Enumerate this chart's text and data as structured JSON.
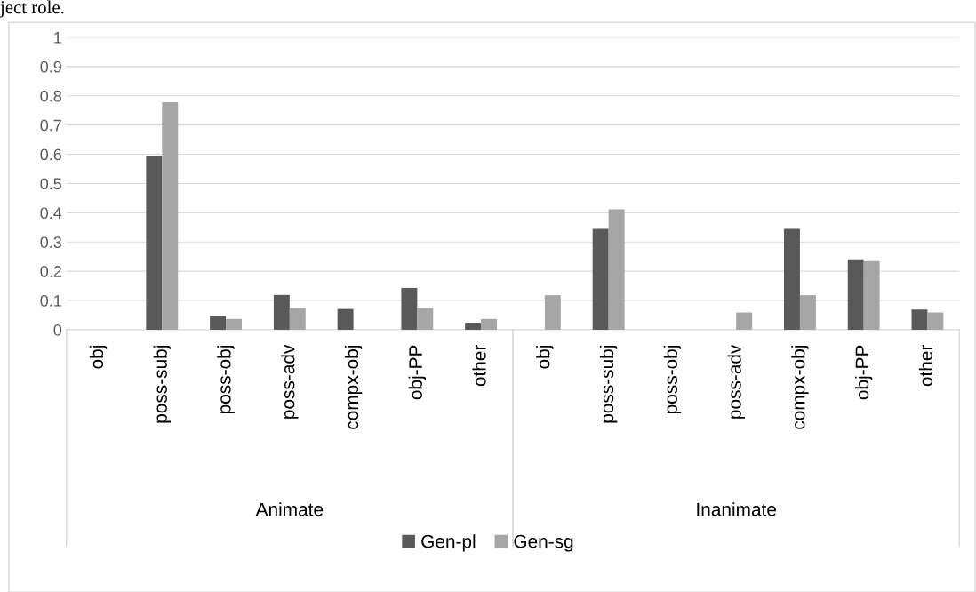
{
  "chart_data": {
    "type": "bar",
    "categories": [
      "obj",
      "poss-subj",
      "poss-obj",
      "poss-adv",
      "compx-obj",
      "obj-PP",
      "other",
      "obj",
      "poss-subj",
      "poss-obj",
      "poss-adv",
      "compx-obj",
      "obj-PP",
      "other"
    ],
    "series": [
      {
        "name": "Gen-pl",
        "color": "#595959",
        "values": [
          0,
          0.595,
          0.048,
          0.119,
          0.071,
          0.143,
          0.024,
          0,
          0.345,
          0,
          0,
          0.345,
          0.241,
          0.069
        ]
      },
      {
        "name": "Gen-sg",
        "color": "#a6a6a6",
        "values": [
          0,
          0.778,
          0.037,
          0.074,
          0,
          0.074,
          0.037,
          0.118,
          0.412,
          0,
          0.059,
          0.118,
          0.235,
          0.059
        ]
      }
    ],
    "ylim": [
      0,
      1
    ],
    "yticks": [
      0,
      0.1,
      0.2,
      0.3,
      0.4,
      0.5,
      0.6,
      0.7,
      0.8,
      0.9,
      1
    ],
    "grid": "y",
    "legend": "bottom",
    "annotations": [
      "ject role.",
      "Animate",
      "Inanimate"
    ]
  }
}
